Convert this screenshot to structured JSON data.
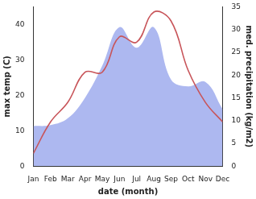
{
  "chart_data": {
    "type": "line",
    "categories": [
      "Jan",
      "Feb",
      "Mar",
      "Apr",
      "May",
      "Jun",
      "Jul",
      "Aug",
      "Sep",
      "Oct",
      "Nov",
      "Dec"
    ],
    "xlabel": "date (month)",
    "ylabel": "max temp (C)",
    "y2label": "med. precipitation (kg/m2)",
    "ylim": [
      0,
      45
    ],
    "yticks": [
      0,
      10,
      20,
      30,
      40
    ],
    "y2lim": [
      0,
      35
    ],
    "y2ticks": [
      0,
      5,
      10,
      15,
      20,
      25,
      30,
      35
    ],
    "grid": false,
    "series": [
      {
        "type": "area",
        "axis": "y2",
        "color": "#adb8f0",
        "values": [
          8.8,
          9.0,
          10.5,
          15.0,
          22.0,
          30.5,
          26.0,
          30.5,
          19.0,
          17.5,
          18.5,
          12.5
        ]
      },
      {
        "type": "line",
        "axis": "y",
        "color": "#c8555a",
        "values": [
          3.6,
          12.5,
          18.0,
          26.5,
          26.5,
          36.5,
          35.0,
          43.5,
          41.0,
          27.0,
          18.0,
          12.5
        ]
      }
    ]
  }
}
